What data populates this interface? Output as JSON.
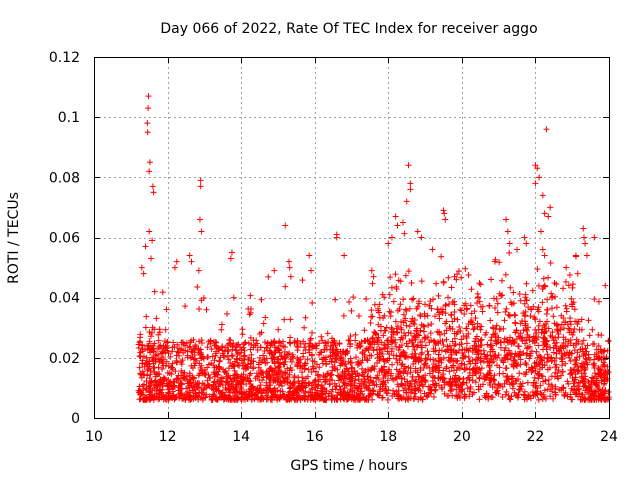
{
  "chart_data": {
    "type": "scatter",
    "title": "Day 066 of 2022, Rate Of TEC Index for receiver aggo",
    "xlabel": "GPS time / hours",
    "ylabel": "ROTI / TECUs",
    "xlim": [
      10,
      24
    ],
    "ylim": [
      0,
      0.12
    ],
    "grid": true,
    "marker": "+",
    "color": "#ff0000",
    "x_ticks": [
      "10",
      "12",
      "14",
      "16",
      "18",
      "20",
      "22",
      "24"
    ],
    "y_ticks": [
      "0",
      "0.02",
      "0.04",
      "0.06",
      "0.08",
      "0.1",
      "0.12"
    ],
    "data_range_x": [
      11.2,
      24
    ],
    "points": [
      {
        "x": 11.48,
        "y": 0.107
      },
      {
        "x": 11.47,
        "y": 0.103
      },
      {
        "x": 11.45,
        "y": 0.098
      },
      {
        "x": 11.46,
        "y": 0.095
      },
      {
        "x": 11.52,
        "y": 0.085
      },
      {
        "x": 11.5,
        "y": 0.082
      },
      {
        "x": 11.6,
        "y": 0.077
      },
      {
        "x": 11.62,
        "y": 0.075
      },
      {
        "x": 11.5,
        "y": 0.062
      },
      {
        "x": 11.58,
        "y": 0.059
      },
      {
        "x": 11.4,
        "y": 0.057
      },
      {
        "x": 11.3,
        "y": 0.05
      },
      {
        "x": 11.35,
        "y": 0.048
      },
      {
        "x": 11.55,
        "y": 0.053
      },
      {
        "x": 11.65,
        "y": 0.042
      },
      {
        "x": 12.9,
        "y": 0.079
      },
      {
        "x": 12.9,
        "y": 0.077
      },
      {
        "x": 12.88,
        "y": 0.066
      },
      {
        "x": 12.92,
        "y": 0.062
      },
      {
        "x": 12.85,
        "y": 0.049
      },
      {
        "x": 12.25,
        "y": 0.052
      },
      {
        "x": 12.2,
        "y": 0.05
      },
      {
        "x": 12.6,
        "y": 0.054
      },
      {
        "x": 12.65,
        "y": 0.052
      },
      {
        "x": 13.75,
        "y": 0.055
      },
      {
        "x": 13.72,
        "y": 0.053
      },
      {
        "x": 13.8,
        "y": 0.04
      },
      {
        "x": 15.2,
        "y": 0.064
      },
      {
        "x": 15.3,
        "y": 0.052
      },
      {
        "x": 15.32,
        "y": 0.05
      },
      {
        "x": 15.35,
        "y": 0.047
      },
      {
        "x": 14.9,
        "y": 0.049
      },
      {
        "x": 15.85,
        "y": 0.054
      },
      {
        "x": 15.9,
        "y": 0.049
      },
      {
        "x": 16.6,
        "y": 0.061
      },
      {
        "x": 16.6,
        "y": 0.06
      },
      {
        "x": 16.8,
        "y": 0.054
      },
      {
        "x": 17.55,
        "y": 0.049
      },
      {
        "x": 17.6,
        "y": 0.047
      },
      {
        "x": 18.55,
        "y": 0.084
      },
      {
        "x": 18.6,
        "y": 0.078
      },
      {
        "x": 18.6,
        "y": 0.076
      },
      {
        "x": 18.2,
        "y": 0.067
      },
      {
        "x": 18.25,
        "y": 0.064
      },
      {
        "x": 18.1,
        "y": 0.06
      },
      {
        "x": 18.4,
        "y": 0.065
      },
      {
        "x": 18.5,
        "y": 0.072
      },
      {
        "x": 18.0,
        "y": 0.058
      },
      {
        "x": 18.8,
        "y": 0.062
      },
      {
        "x": 18.9,
        "y": 0.06
      },
      {
        "x": 19.2,
        "y": 0.056
      },
      {
        "x": 19.5,
        "y": 0.069
      },
      {
        "x": 19.52,
        "y": 0.068
      },
      {
        "x": 19.55,
        "y": 0.066
      },
      {
        "x": 19.8,
        "y": 0.047
      },
      {
        "x": 19.85,
        "y": 0.046
      },
      {
        "x": 20.9,
        "y": 0.052
      },
      {
        "x": 21.2,
        "y": 0.066
      },
      {
        "x": 21.25,
        "y": 0.062
      },
      {
        "x": 21.3,
        "y": 0.058
      },
      {
        "x": 21.5,
        "y": 0.056
      },
      {
        "x": 21.7,
        "y": 0.06
      },
      {
        "x": 21.75,
        "y": 0.058
      },
      {
        "x": 22.0,
        "y": 0.084
      },
      {
        "x": 22.05,
        "y": 0.083
      },
      {
        "x": 22.0,
        "y": 0.078
      },
      {
        "x": 22.1,
        "y": 0.08
      },
      {
        "x": 22.2,
        "y": 0.074
      },
      {
        "x": 22.25,
        "y": 0.068
      },
      {
        "x": 22.4,
        "y": 0.07
      },
      {
        "x": 22.35,
        "y": 0.067
      },
      {
        "x": 22.3,
        "y": 0.096
      },
      {
        "x": 22.15,
        "y": 0.062
      },
      {
        "x": 22.2,
        "y": 0.056
      },
      {
        "x": 22.25,
        "y": 0.054
      },
      {
        "x": 23.3,
        "y": 0.063
      },
      {
        "x": 23.32,
        "y": 0.06
      },
      {
        "x": 23.35,
        "y": 0.058
      },
      {
        "x": 23.4,
        "y": 0.054
      },
      {
        "x": 23.6,
        "y": 0.06
      },
      {
        "x": 23.1,
        "y": 0.054
      },
      {
        "x": 23.9,
        "y": 0.044
      },
      {
        "x": 23.15,
        "y": 0.048
      }
    ]
  }
}
